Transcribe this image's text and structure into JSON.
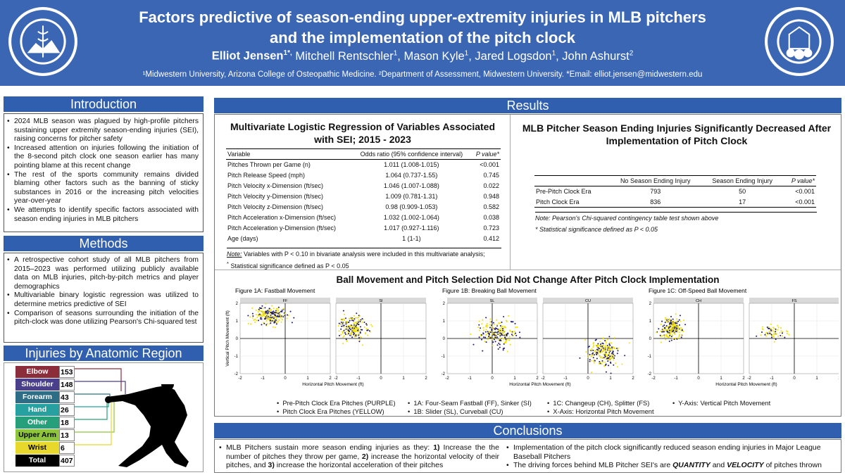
{
  "header": {
    "title_line1": "Factors predictive of season-ending upper-extremity injuries in MLB pitchers",
    "title_line2": "and the implementation of the pitch clock",
    "lead_author": "Elliot Jensen",
    "lead_sup": "1*,",
    "other_authors": [
      {
        "name": " Mitchell Rentschler",
        "sup": "1"
      },
      {
        "name": ", Mason Kyle",
        "sup": "1"
      },
      {
        "name": ", Jared Logsdon",
        "sup": "1"
      },
      {
        "name": ", John Ashurst",
        "sup": "2"
      }
    ],
    "affiliation": "¹Midwestern University, Arizona College of Osteopathic Medicine. ²Department of Assessment, Midwestern University. *Email: elliot.jensen@midwestern.edu"
  },
  "introduction": {
    "heading": "Introduction",
    "bullets": [
      "2024 MLB season was plagued by high-profile pitchers sustaining upper extremity season-ending injuries (SEI), raising concerns for pitcher safety",
      "Increased attention on injuries following the initiation of the 8-second pitch clock one season earlier has many pointing blame at this recent change",
      "The rest of the sports community remains divided blaming other factors such as the banning of sticky substances in 2016 or the increasing pitch velocities year-over-year",
      "We attempts to identify specific factors associated with season ending injuries in MLB pitchers"
    ]
  },
  "methods": {
    "heading": "Methods",
    "bullets": [
      "A retrospective cohort study of all MLB pitchers from 2015–2023 was performed utilizing publicly available data on MLB injuries, pitch-by-pitch metrics and player demographics",
      "Multivariable binary logistic regression was utilized to determine metrics predictive of SEI",
      "Comparison of seasons surrounding the initiation of the pitch-clock was done utilizing Pearson's Chi-squared test"
    ]
  },
  "injuries": {
    "heading": "Injuries by Anatomic Region",
    "rows": [
      {
        "label": "Elbow",
        "value": "153",
        "color": "#8b2d3a"
      },
      {
        "label": "Shoulder",
        "value": "148",
        "color": "#4a3f8a"
      },
      {
        "label": "Forearm",
        "value": "43",
        "color": "#2e6d86"
      },
      {
        "label": "Hand",
        "value": "26",
        "color": "#26a1a0"
      },
      {
        "label": "Other",
        "value": "18",
        "color": "#26a07a"
      },
      {
        "label": "Upper Arm",
        "value": "13",
        "color": "#8ec53c"
      },
      {
        "label": "Wrist",
        "value": "6",
        "color": "#e8d82c"
      },
      {
        "label": "Total",
        "value": "407",
        "color": "#000000"
      }
    ]
  },
  "results": {
    "heading": "Results",
    "regression": {
      "title": "Multivariate Logistic Regression of Variables Associated with SEI; 2015 - 2023",
      "headers": {
        "variable": "Variable",
        "or": "Odds ratio (95% confidence interval)",
        "p": "P value*"
      },
      "rows": [
        {
          "variable": "Pitches Thrown per Game (n)",
          "or": "1.011 (1.008-1.015)",
          "p": "<0.001"
        },
        {
          "variable": "Pitch Release Speed (mph)",
          "or": "1.064 (0.737-1.55)",
          "p": "0.745"
        },
        {
          "variable": "Pitch Velocity x-Dimension (ft/sec)",
          "or": "1.046 (1.007-1.088)",
          "p": "0.022"
        },
        {
          "variable": "Pitch Velocity y-Dimension (ft/sec)",
          "or": "1.009 (0.781-1.31)",
          "p": "0.948"
        },
        {
          "variable": "Pitch Velocity z-Dimension (ft/sec)",
          "or": "0.98 (0.909-1.053)",
          "p": "0.582"
        },
        {
          "variable": "Pitch Acceleration x-Dimension (ft/sec)",
          "or": "1.032 (1.002-1.064)",
          "p": "0.038"
        },
        {
          "variable": "Pitch Acceleration y-Dimension (ft/sec)",
          "or": "1.017 (0.927-1.116)",
          "p": "0.723"
        },
        {
          "variable": "Age (days)",
          "or": "1 (1-1)",
          "p": "0.412"
        }
      ],
      "note_label": "Note:",
      "note": " Variables with P < 0.10 in bivariate analysis were included in this multivariate analysis;",
      "note2": "Statistical significance defined as P < 0.05"
    },
    "chisq": {
      "title": "MLB Pitcher Season Ending Injuries Significantly Decreased After Implementation of Pitch Clock",
      "headers": {
        "blank": "",
        "no": "No Season Ending Injury",
        "yes": "Season Ending Injury",
        "p": "P value*"
      },
      "rows": [
        {
          "label": "Pre-Pitch Clock Era",
          "no": "793",
          "yes": "50",
          "p": "<0.001"
        },
        {
          "label": "Pitch Clock Era",
          "no": "836",
          "yes": "17",
          "p": "<0.001"
        }
      ],
      "note": "Note: Pearson's Chi-squared contingency table test shown above",
      "note2": "* Statistical significance defined as P < 0.05"
    },
    "movement": {
      "title": "Ball Movement and Pitch Selection Did Not Change After Pitch Clock Implementation",
      "figures": [
        {
          "caption": "Figure 1A: Fastball Movement",
          "panels": [
            "FF",
            "SI"
          ]
        },
        {
          "caption": "Figure 1B: Breaking Ball Movement",
          "panels": [
            "SL",
            "CU"
          ]
        },
        {
          "caption": "Figure 1C: Off-Speed Ball Movement",
          "panels": [
            "CH",
            "FS"
          ]
        }
      ],
      "ylabel": "Vertical Pitch Movement (ft)",
      "xlabel": "Horizontal Pitch Movement (ft)",
      "legend": [
        "Pre-Pitch Clock Era Pitches (PURPLE)",
        "Pitch Clock Era Pitches (YELLOW)",
        "1A: Four-Seam Fastball (FF), Sinker (SI)",
        "1B: Slider (SL), Curveball (CU)",
        "1C: Changeup (CH), Splitter (FS)",
        "X-Axis: Horizontal Pitch Movement",
        "Y-Axis: Vertical Pitch Movement"
      ]
    }
  },
  "chart_data": {
    "type": "scatter",
    "xlim": [
      -2,
      2
    ],
    "ylim": [
      -2,
      2
    ],
    "xticks": [
      "-2",
      "-1",
      "0",
      "1",
      "2"
    ],
    "yticks": [
      "2",
      "1",
      "0",
      "-1",
      "-2"
    ],
    "series_colors": {
      "pre": "#1f1a66",
      "post": "#f0e000"
    },
    "clusters": [
      {
        "panel": "FF",
        "cx": -0.7,
        "cy": 1.3,
        "sx": 0.35,
        "sy": 0.25
      },
      {
        "panel": "SI",
        "cx": -1.25,
        "cy": 0.6,
        "sx": 0.3,
        "sy": 0.3
      },
      {
        "panel": "SL",
        "cx": 0.2,
        "cy": 0.3,
        "sx": 0.45,
        "sy": 0.35
      },
      {
        "panel": "CU",
        "cx": 0.7,
        "cy": -0.8,
        "sx": 0.35,
        "sy": 0.35
      },
      {
        "panel": "CH",
        "cx": -1.2,
        "cy": 0.55,
        "sx": 0.25,
        "sy": 0.35
      },
      {
        "panel": "FS",
        "cx": -0.9,
        "cy": 0.35,
        "sx": 0.3,
        "sy": 0.2
      }
    ]
  },
  "conclusions": {
    "heading": "Conclusions",
    "left_bullet": {
      "a": "MLB Pitchers sustain more season ending injuries as they: ",
      "b1": "1)",
      "c": " Increase the the number of pitches they throw per game, ",
      "b2": "2)",
      "d": " increase the horizontal velocity of their pitches, and ",
      "b3": "3)",
      "e": " increase the horizontal acceleration of their pitches"
    },
    "right_bullets": [
      "Implementation of the pitch clock significantly reduced season ending injuries in Major League Baseball Pitchers"
    ],
    "driving": {
      "a": "The driving forces behind MLB Pitcher SEI's are ",
      "q": "QUANTITY",
      "and": " and ",
      "v": "VELOCITY",
      "end": " of pitches thrown"
    }
  }
}
